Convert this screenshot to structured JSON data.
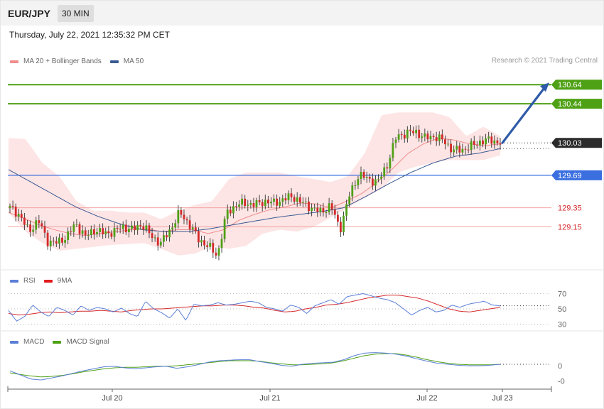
{
  "header": {
    "symbol": "EUR/JPY",
    "timeframe": "30 MIN"
  },
  "datetime": "Thursday, July 22, 2021 12:35:32 PM CET",
  "legend": {
    "main": [
      {
        "label": "MA 20 + Bollinger Bands",
        "color": "#f08c8c"
      },
      {
        "label": "MA 50",
        "color": "#3a5a93"
      }
    ],
    "rsi": [
      {
        "label": "RSI",
        "color": "#5b7fd6"
      },
      {
        "label": "9MA",
        "color": "#e01b1b"
      }
    ],
    "macd": [
      {
        "label": "MACD",
        "color": "#5b7fd6"
      },
      {
        "label": "MACD Signal",
        "color": "#4ea014"
      }
    ]
  },
  "copyright": "Research © 2021 Trading Central",
  "colors": {
    "up": "#4ea014",
    "down": "#d4282a",
    "band": "#fde0e0",
    "ma20": "#f08c8c",
    "ma50": "#3a5a93",
    "target": "#4ea014",
    "pivot": "#3b6fe0",
    "support": "#f2a0a0",
    "arrow": "#2e5aa8"
  },
  "chart_data": [
    {
      "type": "candlestick",
      "title": "EUR/JPY",
      "ylim": [
        128.7,
        130.82
      ],
      "x_ticks": [
        "Jul 20",
        "Jul 21",
        "Jul 22",
        "Jul 23"
      ],
      "levels": [
        {
          "value": 130.64,
          "label": "130.64",
          "kind": "target"
        },
        {
          "value": 130.44,
          "label": "130.44",
          "kind": "target"
        },
        {
          "value": 130.03,
          "label": "130.03",
          "kind": "last"
        },
        {
          "value": 129.69,
          "label": "129.69",
          "kind": "pivot"
        },
        {
          "value": 129.35,
          "label": "129.35",
          "kind": "support"
        },
        {
          "value": 129.15,
          "label": "129.15",
          "kind": "support"
        }
      ],
      "arrow": {
        "from": 130.03,
        "to": 130.64
      },
      "anchors": [
        129.35,
        129.28,
        129.1,
        129.22,
        129.0,
        128.98,
        129.05,
        129.18,
        129.05,
        129.12,
        129.08,
        129.1,
        129.15,
        129.12,
        129.18,
        129.05,
        128.98,
        129.12,
        129.3,
        129.18,
        129.02,
        128.95,
        128.85,
        129.3,
        129.38,
        129.4,
        129.38,
        129.42,
        129.4,
        129.44,
        129.47,
        129.4,
        129.35,
        129.3,
        129.38,
        129.12,
        129.48,
        129.7,
        129.65,
        129.62,
        129.8,
        130.1,
        130.13,
        130.15,
        130.08,
        130.1,
        130.05,
        129.95,
        129.96,
        130.0,
        130.05,
        130.06,
        130.03
      ],
      "ma20_anchors": [
        129.3,
        129.24,
        129.17,
        129.12,
        129.08,
        129.06,
        129.08,
        129.1,
        129.12,
        129.13,
        129.1,
        129.12,
        129.12,
        129.08,
        129.12,
        129.22,
        129.28,
        129.33,
        129.36,
        129.4,
        129.39,
        129.35,
        129.42,
        129.5,
        129.62,
        129.76,
        129.92,
        130.02,
        130.08,
        130.06,
        130.02,
        130.0,
        130.02
      ],
      "ma50_anchors": [
        129.75,
        129.62,
        129.49,
        129.36,
        129.26,
        129.18,
        129.12,
        129.1,
        129.1,
        129.13,
        129.17,
        129.21,
        129.25,
        129.28,
        129.31,
        129.35,
        129.47,
        129.6,
        129.72,
        129.82,
        129.89,
        129.92,
        129.97
      ],
      "band_upper": [
        130.08,
        130.07,
        129.82,
        129.68,
        129.42,
        129.32,
        129.32,
        129.3,
        129.3,
        129.23,
        129.32,
        129.38,
        129.42,
        129.65,
        129.72,
        129.72,
        129.72,
        129.68,
        129.65,
        129.62,
        129.68,
        129.92,
        130.32,
        130.35,
        130.35,
        130.35,
        130.3,
        130.1,
        130.2,
        130.1
      ],
      "band_lower": [
        129.3,
        129.1,
        128.98,
        128.9,
        128.92,
        128.94,
        128.96,
        128.97,
        128.98,
        128.92,
        128.85,
        128.87,
        128.95,
        128.92,
        128.95,
        129.08,
        129.12,
        129.1,
        129.15,
        129.25,
        129.35,
        129.45,
        129.55,
        129.72,
        129.78,
        129.82,
        129.85,
        129.85,
        129.85,
        129.9
      ]
    },
    {
      "type": "line",
      "title": "RSI",
      "ylim": [
        25,
        75
      ],
      "y_ticks": [
        70,
        50,
        30
      ],
      "series": [
        {
          "name": "RSI",
          "anchors": [
            48,
            34,
            40,
            55,
            46,
            40,
            52,
            48,
            42,
            54,
            48,
            52,
            50,
            46,
            51,
            44,
            40,
            60,
            50,
            45,
            38,
            50,
            35,
            56,
            54,
            55,
            58,
            55,
            56,
            58,
            60,
            58,
            52,
            50,
            47,
            55,
            52,
            44,
            54,
            58,
            62,
            56,
            66,
            68,
            70,
            67,
            64,
            62,
            58,
            50,
            42,
            48,
            52,
            46,
            48,
            55,
            52,
            56,
            58,
            60,
            55,
            54
          ]
        },
        {
          "name": "9MA",
          "anchors": [
            44,
            42,
            43,
            45,
            46,
            45,
            46,
            47,
            47,
            48,
            47,
            46,
            48,
            49,
            50,
            50,
            51,
            52,
            53,
            54,
            54,
            55,
            55,
            54,
            52,
            51,
            48,
            46,
            47,
            50,
            52,
            55,
            56,
            58,
            61,
            64,
            66,
            68,
            68,
            66,
            64,
            60,
            55,
            50,
            47,
            46,
            48,
            50,
            52
          ]
        }
      ]
    },
    {
      "type": "line",
      "title": "MACD",
      "ylim": [
        -0.46,
        0.38
      ],
      "y_ticks": [
        {
          "value": 0,
          "label": "0"
        },
        {
          "value": -0.3,
          "label": "-0"
        }
      ],
      "series": [
        {
          "name": "MACD",
          "anchors": [
            -0.1,
            -0.18,
            -0.26,
            -0.28,
            -0.24,
            -0.2,
            -0.15,
            -0.1,
            -0.06,
            -0.02,
            -0.01,
            -0.04,
            -0.06,
            -0.04,
            -0.02,
            -0.01,
            -0.05,
            -0.02,
            0.02,
            0.07,
            0.1,
            0.11,
            0.12,
            0.12,
            0.08,
            0.05,
            0.01,
            -0.01,
            0.03,
            0.05,
            0.06,
            0.07,
            0.12,
            0.2,
            0.25,
            0.26,
            0.25,
            0.23,
            0.19,
            0.14,
            0.09,
            0.05,
            0.03,
            0.01,
            0.0,
            0.0,
            0.01,
            0.03
          ]
        },
        {
          "name": "MACD Signal",
          "anchors": [
            -0.14,
            -0.17,
            -0.2,
            -0.22,
            -0.21,
            -0.19,
            -0.16,
            -0.12,
            -0.09,
            -0.06,
            -0.04,
            -0.03,
            -0.03,
            -0.02,
            -0.01,
            -0.01,
            0.0,
            0.02,
            0.04,
            0.06,
            0.08,
            0.1,
            0.1,
            0.1,
            0.09,
            0.06,
            0.04,
            0.02,
            0.02,
            0.03,
            0.04,
            0.06,
            0.1,
            0.15,
            0.2,
            0.23,
            0.24,
            0.24,
            0.21,
            0.17,
            0.12,
            0.08,
            0.05,
            0.03,
            0.02,
            0.02,
            0.02,
            0.03
          ]
        }
      ]
    }
  ]
}
